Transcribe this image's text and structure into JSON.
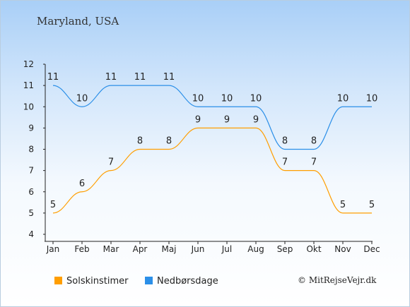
{
  "title": "Maryland, USA",
  "copyright": "© MitRejseVejr.dk",
  "colors": {
    "sun": "#ff9e00",
    "rain": "#2b8fe8"
  },
  "chart_data": {
    "type": "line",
    "categories": [
      "Jan",
      "Feb",
      "Mar",
      "Apr",
      "Maj",
      "Jun",
      "Jul",
      "Aug",
      "Sep",
      "Okt",
      "Nov",
      "Dec"
    ],
    "ylim": [
      4,
      12
    ],
    "yticks": [
      "4",
      "5",
      "6",
      "7",
      "8",
      "9",
      "10",
      "11",
      "12"
    ],
    "grid": false,
    "legend": "bottom-left",
    "series": [
      {
        "name": "Solskinstimer",
        "color": "#ff9e00",
        "values": [
          5,
          6,
          7,
          8,
          8,
          9,
          9,
          9,
          7,
          7,
          5,
          5
        ]
      },
      {
        "name": "Nedbørsdage",
        "color": "#2b8fe8",
        "values": [
          11,
          10,
          11,
          11,
          11,
          10,
          10,
          10,
          8,
          8,
          10,
          10
        ]
      }
    ]
  }
}
